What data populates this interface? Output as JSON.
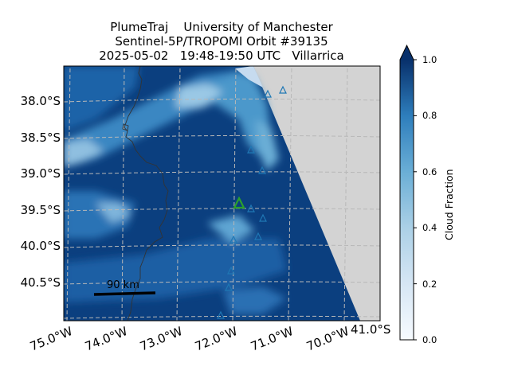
{
  "title": {
    "line1": "PlumeTraj    University of Manchester",
    "line2": "Sentinel-5P/TROPOMI Orbit #39135",
    "line3": "2025-05-02   19:48-19:50 UTC   Villarrica"
  },
  "map": {
    "lat_labels": [
      "38.0°S",
      "38.5°S",
      "39.0°S",
      "39.5°S",
      "40.0°S",
      "40.5°S"
    ],
    "lon_labels": [
      "75.0°W",
      "74.0°W",
      "73.0°W",
      "72.0°W",
      "71.0°W",
      "70.0°W"
    ],
    "corner_label": "41.0°S",
    "scale_bar": "90 km",
    "missing_data_color": "#d3d3d3",
    "volcano_color": "#2ca02c",
    "other_volcano_color": "#1f77b4"
  },
  "colorbar": {
    "label": "Cloud Fraction",
    "ticks": [
      "0.0",
      "0.2",
      "0.4",
      "0.6",
      "0.8",
      "1.0"
    ],
    "extend": "max",
    "colormap": "Blues",
    "range": [
      0,
      1
    ]
  }
}
